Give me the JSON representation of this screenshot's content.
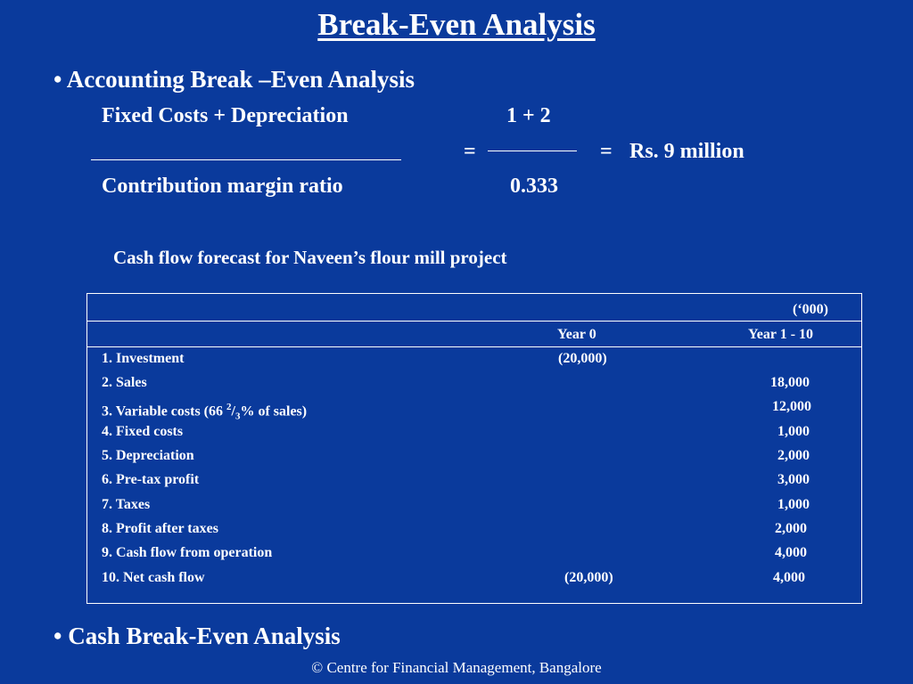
{
  "title": "Break-Even Analysis",
  "bullet1": {
    "dot": "•",
    "text": "Accounting Break –Even  Analysis"
  },
  "formula": {
    "numerator": "Fixed Costs + Depreciation",
    "denominator": "Contribution margin ratio",
    "equals1": "=",
    "num_value": "1 + 2",
    "den_value": "0.333",
    "equals2": "=",
    "result": "Rs. 9 million"
  },
  "table_caption": "Cash flow forecast for Naveen’s flour mill project",
  "table": {
    "unit": "(‘000)",
    "col_year0": "Year 0",
    "col_year1_10": "Year 1 - 10",
    "rows": [
      {
        "label": "1. Investment",
        "y0": "(20,000)",
        "y1": ""
      },
      {
        "label": "2. Sales",
        "y0": "",
        "y1": "18,000"
      },
      {
        "label_pre": "3. Variable costs (66 ",
        "label_sup": "2",
        "label_slash": "/",
        "label_sub": "3",
        "label_post": "% of sales)",
        "y0": "",
        "y1": "12,000"
      },
      {
        "label": "4. Fixed costs",
        "y0": "",
        "y1": "1,000"
      },
      {
        "label": "5. Depreciation",
        "y0": "",
        "y1": "2,000"
      },
      {
        "label": "6. Pre-tax profit",
        "y0": "",
        "y1": "3,000"
      },
      {
        "label": "7. Taxes",
        "y0": "",
        "y1": "1,000"
      },
      {
        "label": "8. Profit after taxes",
        "y0": "",
        "y1": "2,000"
      },
      {
        "label": "9. Cash flow from operation",
        "y0": "",
        "y1": "4,000"
      },
      {
        "label": "10. Net cash flow",
        "y0": "(20,000)",
        "y1": "4,000"
      }
    ]
  },
  "bullet2": {
    "dot": "•",
    "text": "Cash Break-Even Analysis"
  },
  "footer": "© Centre for Financial Management, Bangalore",
  "colors": {
    "background": "#0a3a9c",
    "text": "#ffffff"
  }
}
